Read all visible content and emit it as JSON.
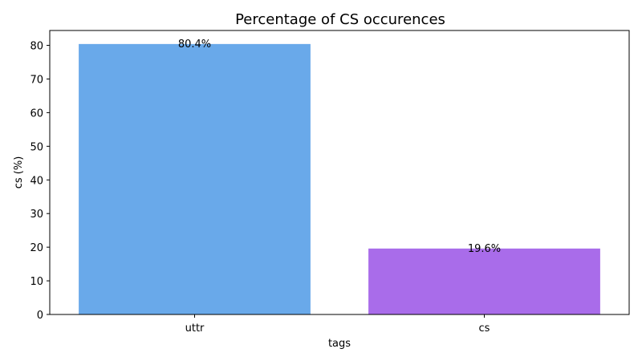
{
  "chart_data": {
    "type": "bar",
    "title": "Percentage of CS occurences",
    "xlabel": "tags",
    "ylabel": "cs (%)",
    "categories": [
      "uttr",
      "cs"
    ],
    "values": [
      80.4,
      19.6
    ],
    "data_labels": [
      "80.4%",
      "19.6%"
    ],
    "colors": [
      "#69A9EA",
      "#A96CEA"
    ],
    "ylim": [
      0,
      84.42
    ],
    "yticks": [
      0,
      10,
      20,
      30,
      40,
      50,
      60,
      70,
      80
    ],
    "ytick_labels": [
      "0",
      "10",
      "20",
      "30",
      "40",
      "50",
      "60",
      "70",
      "80"
    ],
    "grid": false,
    "legend": "none"
  }
}
